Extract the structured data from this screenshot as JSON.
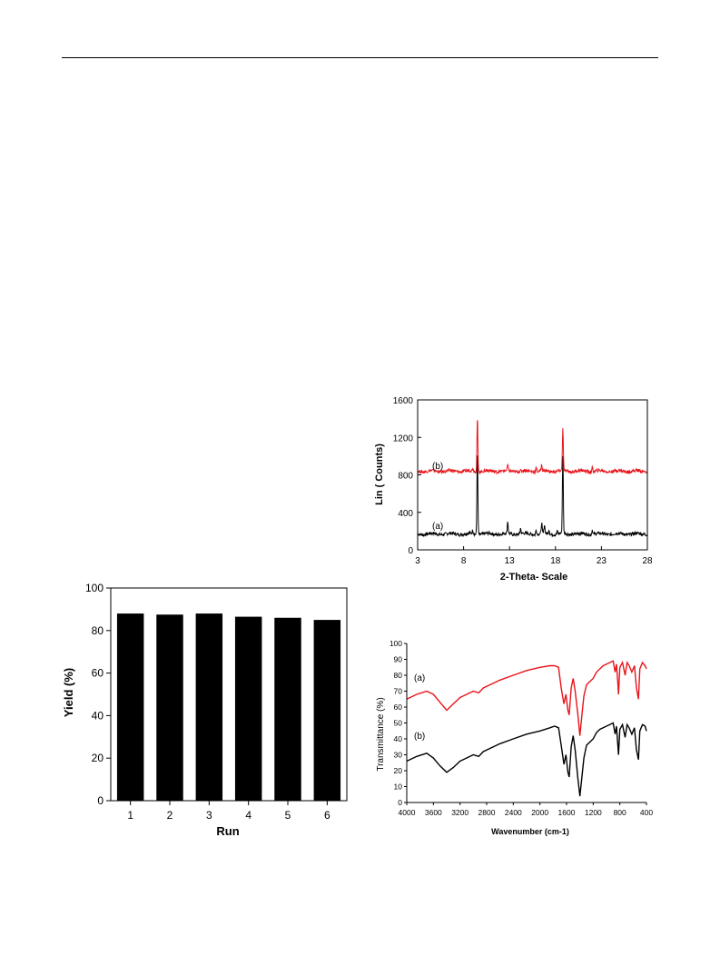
{
  "chart_data": [
    {
      "id": "yield",
      "type": "bar",
      "xlabel": "Run",
      "ylabel": "Yield (%)",
      "categories": [
        "1",
        "2",
        "3",
        "4",
        "5",
        "6"
      ],
      "values": [
        88,
        87.5,
        88,
        86.5,
        86,
        85
      ],
      "ylim": [
        0,
        100
      ],
      "yticks": [
        "0",
        "20",
        "40",
        "60",
        "80",
        "100"
      ],
      "bar_color": "#000000",
      "grid": false
    },
    {
      "id": "xrd",
      "type": "line",
      "xlabel": "2-Theta- Scale",
      "ylabel": "Lin ( Counts)",
      "xlim": [
        3,
        28
      ],
      "ylim": [
        0,
        1600
      ],
      "xticks": [
        "3",
        "8",
        "13",
        "18",
        "23",
        "28"
      ],
      "yticks": [
        "0",
        "400",
        "800",
        "1200",
        "1600"
      ],
      "annotations": [
        "(a)",
        "(b)"
      ],
      "grid": false,
      "series": [
        {
          "label": "(a)",
          "color": "#000000",
          "baseline": 170,
          "peaks": [
            [
              9.5,
              900
            ],
            [
              9.0,
              40
            ],
            [
              12.8,
              130
            ],
            [
              14.2,
              60
            ],
            [
              15.9,
              50
            ],
            [
              16.5,
              110
            ],
            [
              16.8,
              90
            ],
            [
              17.3,
              50
            ],
            [
              18.2,
              30
            ],
            [
              18.8,
              830
            ],
            [
              22.0,
              50
            ]
          ]
        },
        {
          "label": "(b)",
          "color": "#e8141b",
          "baseline": 840,
          "peaks": [
            [
              9.5,
              580
            ],
            [
              9.0,
              30
            ],
            [
              12.8,
              60
            ],
            [
              15.9,
              40
            ],
            [
              16.5,
              60
            ],
            [
              18.8,
              460
            ],
            [
              22.0,
              40
            ]
          ]
        }
      ]
    },
    {
      "id": "ftir",
      "type": "line",
      "xlabel": "Wavenumber (cm-1)",
      "ylabel": "Transmittance (%)",
      "xlim": [
        4000,
        400
      ],
      "ylim": [
        0,
        100
      ],
      "xticks": [
        "4000",
        "3600",
        "3200",
        "2800",
        "2400",
        "2000",
        "1600",
        "1200",
        "800",
        "400"
      ],
      "yticks": [
        "0",
        "10",
        "20",
        "30",
        "40",
        "50",
        "60",
        "70",
        "80",
        "90",
        "100"
      ],
      "annotations": [
        "(a)",
        "(b)"
      ],
      "grid": false,
      "series": [
        {
          "label": "(a)",
          "color": "#e8141b",
          "points": [
            [
              4000,
              65
            ],
            [
              3850,
              68
            ],
            [
              3700,
              70
            ],
            [
              3600,
              68
            ],
            [
              3500,
              63
            ],
            [
              3400,
              58
            ],
            [
              3300,
              62
            ],
            [
              3200,
              66
            ],
            [
              3000,
              70
            ],
            [
              2920,
              69
            ],
            [
              2850,
              72
            ],
            [
              2600,
              77
            ],
            [
              2400,
              80
            ],
            [
              2200,
              83
            ],
            [
              2000,
              85
            ],
            [
              1850,
              86
            ],
            [
              1780,
              86
            ],
            [
              1720,
              85
            ],
            [
              1680,
              72
            ],
            [
              1640,
              62
            ],
            [
              1610,
              68
            ],
            [
              1580,
              58
            ],
            [
              1560,
              55
            ],
            [
              1530,
              72
            ],
            [
              1500,
              78
            ],
            [
              1470,
              70
            ],
            [
              1430,
              55
            ],
            [
              1400,
              42
            ],
            [
              1370,
              55
            ],
            [
              1340,
              67
            ],
            [
              1300,
              74
            ],
            [
              1200,
              78
            ],
            [
              1150,
              82
            ],
            [
              1100,
              84
            ],
            [
              1050,
              86
            ],
            [
              1000,
              87
            ],
            [
              950,
              88
            ],
            [
              900,
              89
            ],
            [
              870,
              82
            ],
            [
              850,
              87
            ],
            [
              830,
              75
            ],
            [
              820,
              68
            ],
            [
              800,
              85
            ],
            [
              760,
              88
            ],
            [
              720,
              80
            ],
            [
              690,
              88
            ],
            [
              660,
              86
            ],
            [
              620,
              82
            ],
            [
              580,
              86
            ],
            [
              550,
              72
            ],
            [
              520,
              65
            ],
            [
              500,
              84
            ],
            [
              460,
              88
            ],
            [
              420,
              86
            ],
            [
              400,
              84
            ]
          ]
        },
        {
          "label": "(b)",
          "color": "#000000",
          "points": [
            [
              4000,
              26
            ],
            [
              3850,
              29
            ],
            [
              3700,
              31
            ],
            [
              3600,
              28
            ],
            [
              3500,
              23
            ],
            [
              3400,
              19
            ],
            [
              3300,
              22
            ],
            [
              3200,
              26
            ],
            [
              3000,
              30
            ],
            [
              2920,
              29
            ],
            [
              2850,
              32
            ],
            [
              2600,
              37
            ],
            [
              2400,
              40
            ],
            [
              2200,
              43
            ],
            [
              2000,
              45
            ],
            [
              1850,
              47
            ],
            [
              1780,
              48
            ],
            [
              1720,
              47
            ],
            [
              1680,
              36
            ],
            [
              1640,
              24
            ],
            [
              1610,
              30
            ],
            [
              1580,
              19
            ],
            [
              1560,
              16
            ],
            [
              1530,
              35
            ],
            [
              1500,
              42
            ],
            [
              1470,
              33
            ],
            [
              1430,
              15
            ],
            [
              1400,
              4
            ],
            [
              1370,
              16
            ],
            [
              1340,
              28
            ],
            [
              1300,
              36
            ],
            [
              1200,
              40
            ],
            [
              1150,
              44
            ],
            [
              1100,
              46
            ],
            [
              1050,
              47
            ],
            [
              1000,
              48
            ],
            [
              950,
              49
            ],
            [
              900,
              50
            ],
            [
              870,
              43
            ],
            [
              850,
              48
            ],
            [
              830,
              36
            ],
            [
              820,
              30
            ],
            [
              800,
              46
            ],
            [
              760,
              49
            ],
            [
              720,
              41
            ],
            [
              690,
              49
            ],
            [
              660,
              47
            ],
            [
              620,
              43
            ],
            [
              580,
              47
            ],
            [
              550,
              33
            ],
            [
              520,
              27
            ],
            [
              500,
              45
            ],
            [
              460,
              49
            ],
            [
              420,
              48
            ],
            [
              400,
              45
            ]
          ]
        }
      ]
    }
  ]
}
